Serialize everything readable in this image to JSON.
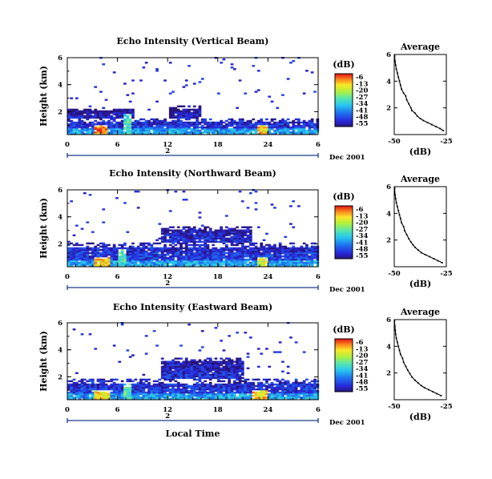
{
  "chart_data": [
    {
      "type": "heatmap",
      "title": "Echo Intensity (Vertical Beam)",
      "ylabel": "Height (km)",
      "yticks": [
        "2",
        "4",
        "6"
      ],
      "ylim": [
        0.3,
        6.0
      ],
      "xticks": [
        "0",
        "6",
        "12",
        "18",
        "24",
        "6"
      ],
      "xlim": [
        0,
        30
      ],
      "date_tick": "2",
      "date_label": "Dec 2001",
      "colorbar": {
        "unit": "(dB)",
        "ticks": [
          "-6",
          "-13",
          "-20",
          "-27",
          "-34",
          "-41",
          "-48",
          "-55"
        ],
        "range": [
          -55,
          -6
        ]
      },
      "profile": {
        "title": "Average",
        "xlabel": "(dB)",
        "xticks": [
          "-50",
          "-25"
        ],
        "yticks": [
          "2",
          "4",
          "6"
        ],
        "xlim": [
          -50,
          -25
        ],
        "ylim": [
          0,
          6
        ],
        "values": [
          [
            -26.5,
            0.3
          ],
          [
            -28,
            0.45
          ],
          [
            -30,
            0.6
          ],
          [
            -32,
            0.75
          ],
          [
            -34,
            0.9
          ],
          [
            -36,
            1.05
          ],
          [
            -37.5,
            1.2
          ],
          [
            -39,
            1.4
          ],
          [
            -40,
            1.6
          ],
          [
            -41.5,
            1.8
          ],
          [
            -42,
            2.0
          ],
          [
            -43,
            2.3
          ],
          [
            -44,
            2.6
          ],
          [
            -44.5,
            2.9
          ],
          [
            -45.5,
            3.1
          ],
          [
            -46.5,
            3.4
          ],
          [
            -47,
            3.7
          ],
          [
            -47.5,
            4.0
          ],
          [
            -48,
            4.3
          ],
          [
            -48.5,
            4.6
          ],
          [
            -49,
            4.9
          ],
          [
            -49.3,
            5.2
          ],
          [
            -49.6,
            5.5
          ],
          [
            -49.8,
            5.9
          ]
        ]
      },
      "echo_layers": [
        {
          "hour_range": [
            0,
            30
          ],
          "height_range": [
            0.3,
            1.4
          ],
          "mean_db": -45
        },
        {
          "hour_range": [
            0,
            8
          ],
          "height_range": [
            1.4,
            2.2
          ],
          "mean_db": -50
        },
        {
          "hour_range": [
            12,
            16
          ],
          "height_range": [
            1.4,
            2.4
          ],
          "mean_db": -50
        },
        {
          "hour_range": [
            3,
            4.5
          ],
          "height_range": [
            0.3,
            1.0
          ],
          "mean_db": -10
        },
        {
          "hour_range": [
            6.5,
            7.5
          ],
          "height_range": [
            0.3,
            1.8
          ],
          "mean_db": -30
        },
        {
          "hour_range": [
            22.5,
            24
          ],
          "height_range": [
            0.3,
            1.0
          ],
          "mean_db": -15
        }
      ]
    },
    {
      "type": "heatmap",
      "title": "Echo Intensity (Northward Beam)",
      "ylabel": "Height (km)",
      "yticks": [
        "2",
        "4",
        "6"
      ],
      "ylim": [
        0.3,
        6.0
      ],
      "xticks": [
        "0",
        "6",
        "12",
        "18",
        "24",
        "6"
      ],
      "xlim": [
        0,
        30
      ],
      "date_tick": "2",
      "date_label": "Dec 2001",
      "colorbar": {
        "unit": "(dB)",
        "ticks": [
          "-6",
          "-13",
          "-20",
          "-27",
          "-34",
          "-41",
          "-48",
          "-55"
        ],
        "range": [
          -55,
          -6
        ]
      },
      "profile": {
        "title": "Average",
        "xlabel": "(dB)",
        "xticks": [
          "-50",
          "-25"
        ],
        "yticks": [
          "2",
          "4",
          "6"
        ],
        "xlim": [
          -50,
          -25
        ],
        "ylim": [
          0,
          6
        ],
        "values": [
          [
            -27,
            0.3
          ],
          [
            -29,
            0.45
          ],
          [
            -31,
            0.6
          ],
          [
            -33,
            0.75
          ],
          [
            -35,
            0.9
          ],
          [
            -37,
            1.05
          ],
          [
            -38.5,
            1.25
          ],
          [
            -40,
            1.45
          ],
          [
            -41,
            1.65
          ],
          [
            -42,
            1.85
          ],
          [
            -43,
            2.1
          ],
          [
            -44,
            2.4
          ],
          [
            -45,
            2.7
          ],
          [
            -45.5,
            3.0
          ],
          [
            -46.5,
            3.3
          ],
          [
            -47,
            3.6
          ],
          [
            -47.5,
            3.9
          ],
          [
            -48,
            4.2
          ],
          [
            -48.5,
            4.5
          ],
          [
            -49,
            4.8
          ],
          [
            -49.3,
            5.1
          ],
          [
            -49.6,
            5.4
          ],
          [
            -49.8,
            5.9
          ]
        ]
      },
      "echo_layers": [
        {
          "hour_range": [
            0,
            30
          ],
          "height_range": [
            0.3,
            2.0
          ],
          "mean_db": -45
        },
        {
          "hour_range": [
            11,
            22
          ],
          "height_range": [
            2.0,
            3.2
          ],
          "mean_db": -48
        },
        {
          "hour_range": [
            3,
            5
          ],
          "height_range": [
            0.3,
            1.0
          ],
          "mean_db": -15
        },
        {
          "hour_range": [
            6,
            7
          ],
          "height_range": [
            0.3,
            1.6
          ],
          "mean_db": -30
        },
        {
          "hour_range": [
            22.5,
            24
          ],
          "height_range": [
            0.3,
            1.0
          ],
          "mean_db": -20
        }
      ]
    },
    {
      "type": "heatmap",
      "title": "Echo Intensity (Eastward Beam)",
      "ylabel": "Height (km)",
      "yticks": [
        "2",
        "4",
        "6"
      ],
      "ylim": [
        0.3,
        6.0
      ],
      "xticks": [
        "0",
        "6",
        "12",
        "18",
        "24",
        "6"
      ],
      "xlim": [
        0,
        30
      ],
      "date_tick": "2",
      "date_label": "Dec 2001",
      "xlabel": "Local Time",
      "colorbar": {
        "unit": "(dB)",
        "ticks": [
          "-6",
          "-13",
          "-20",
          "-27",
          "-34",
          "-41",
          "-48",
          "-55"
        ],
        "range": [
          -55,
          -6
        ]
      },
      "profile": {
        "title": "Average",
        "xlabel": "(dB)",
        "xticks": [
          "-50",
          "-25"
        ],
        "yticks": [
          "2",
          "4",
          "6"
        ],
        "xlim": [
          -50,
          -25
        ],
        "ylim": [
          0,
          6
        ],
        "values": [
          [
            -27.5,
            0.3
          ],
          [
            -29.5,
            0.45
          ],
          [
            -31.5,
            0.6
          ],
          [
            -33.5,
            0.75
          ],
          [
            -35.5,
            0.9
          ],
          [
            -37,
            1.05
          ],
          [
            -38.5,
            1.25
          ],
          [
            -40,
            1.45
          ],
          [
            -41.5,
            1.7
          ],
          [
            -42.5,
            1.95
          ],
          [
            -43.5,
            2.2
          ],
          [
            -44.5,
            2.5
          ],
          [
            -45.5,
            2.8
          ],
          [
            -46,
            3.1
          ],
          [
            -47,
            3.4
          ],
          [
            -47.5,
            3.7
          ],
          [
            -48,
            4.0
          ],
          [
            -48.5,
            4.3
          ],
          [
            -49,
            4.6
          ],
          [
            -49.3,
            4.9
          ],
          [
            -49.5,
            5.2
          ],
          [
            -49.7,
            5.5
          ],
          [
            -49.9,
            5.9
          ]
        ]
      },
      "echo_layers": [
        {
          "hour_range": [
            0,
            30
          ],
          "height_range": [
            0.3,
            1.8
          ],
          "mean_db": -45
        },
        {
          "hour_range": [
            11,
            21
          ],
          "height_range": [
            1.8,
            3.4
          ],
          "mean_db": -48
        },
        {
          "hour_range": [
            3,
            5
          ],
          "height_range": [
            0.3,
            1.0
          ],
          "mean_db": -15
        },
        {
          "hour_range": [
            6.5,
            7.5
          ],
          "height_range": [
            0.3,
            1.5
          ],
          "mean_db": -30
        },
        {
          "hour_range": [
            22,
            24
          ],
          "height_range": [
            0.3,
            1.0
          ],
          "mean_db": -15
        }
      ]
    }
  ]
}
